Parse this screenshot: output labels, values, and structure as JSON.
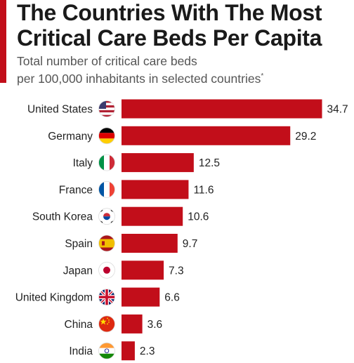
{
  "header": {
    "title_line1": "The Countries With The Most",
    "title_line2": "Critical Care Beds Per Capita",
    "subtitle_line1": "Total number of critical care beds",
    "subtitle_line2": "per 100,000 inhabitants in selected countries",
    "subtitle_mark": "*"
  },
  "colors": {
    "bar": "#c20e1a",
    "accent": "#c20e1a"
  },
  "chart_data": {
    "type": "bar",
    "orientation": "horizontal",
    "title": "The Countries With The Most Critical Care Beds Per Capita",
    "subtitle": "Total number of critical care beds per 100,000 inhabitants in selected countries*",
    "categories": [
      "United States",
      "Germany",
      "Italy",
      "France",
      "South Korea",
      "Spain",
      "Japan",
      "United Kingdom",
      "China",
      "India"
    ],
    "values": [
      34.7,
      29.2,
      12.5,
      11.6,
      10.6,
      9.7,
      7.3,
      6.6,
      3.6,
      2.3
    ],
    "value_labels": [
      "34.7",
      "29.2",
      "12.5",
      "11.6",
      "10.6",
      "9.7",
      "7.3",
      "6.6",
      "3.6",
      "2.3"
    ],
    "flag_icons": [
      "flag-us-icon",
      "flag-de-icon",
      "flag-it-icon",
      "flag-fr-icon",
      "flag-kr-icon",
      "flag-es-icon",
      "flag-jp-icon",
      "flag-gb-icon",
      "flag-cn-icon",
      "flag-in-icon"
    ],
    "xlim": [
      0,
      34.7
    ],
    "grid": false,
    "legend": "none"
  }
}
